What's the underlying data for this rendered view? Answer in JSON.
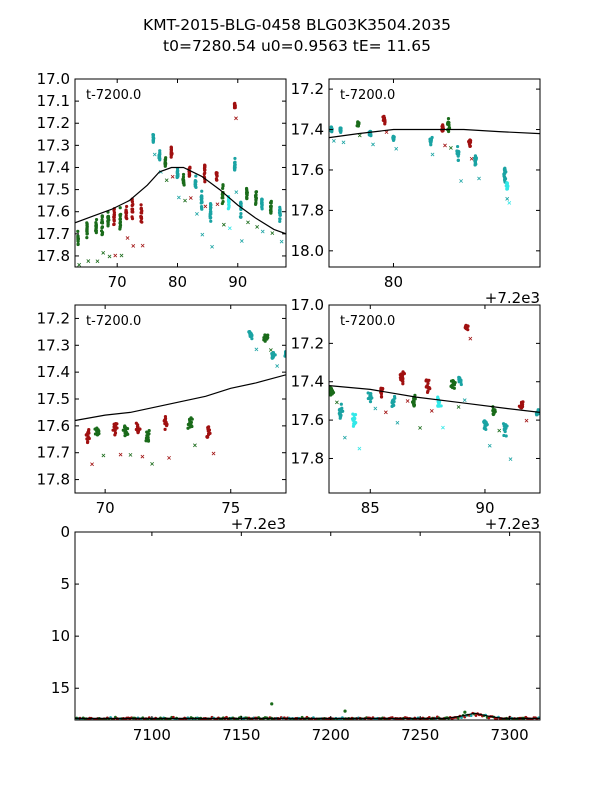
{
  "figure": {
    "title_line1": "KMT-2015-BLG-0458 BLG03K3504.2035",
    "title_line2": "t0=7280.54 u0=0.9563 tE=  11.65"
  },
  "colors": {
    "red": "#a01010",
    "green": "#1a6b1a",
    "teal": "#1aa3a3",
    "cyan": "#33e8e8",
    "model": "#000000"
  },
  "chart_data": [
    {
      "type": "scatter",
      "panel": "top-left",
      "inner_label": "t-7200.0",
      "xlim": [
        63,
        98
      ],
      "ylim": [
        17.85,
        17.0
      ],
      "inverted_y": true,
      "x_ticks": [
        "70",
        "80",
        "90"
      ],
      "x_tick_values": [
        70,
        80,
        90
      ],
      "y_ticks": [
        "17.0",
        "17.1",
        "17.2",
        "17.3",
        "17.4",
        "17.5",
        "17.6",
        "17.7",
        "17.8"
      ],
      "y_tick_values": [
        17.0,
        17.1,
        17.2,
        17.3,
        17.4,
        17.5,
        17.6,
        17.7,
        17.8
      ],
      "x_offset_label": "",
      "model": [
        [
          63,
          17.65
        ],
        [
          66,
          17.62
        ],
        [
          69,
          17.59
        ],
        [
          72,
          17.55
        ],
        [
          75,
          17.48
        ],
        [
          77,
          17.42
        ],
        [
          79,
          17.4
        ],
        [
          81,
          17.4
        ],
        [
          84,
          17.44
        ],
        [
          87,
          17.5
        ],
        [
          90,
          17.57
        ],
        [
          93,
          17.63
        ],
        [
          96,
          17.68
        ],
        [
          98,
          17.7
        ]
      ],
      "clusters": [
        {
          "x": 63.5,
          "y": 17.72,
          "s": 0.05,
          "c": "green"
        },
        {
          "x": 65,
          "y": 17.68,
          "s": 0.05,
          "c": "green"
        },
        {
          "x": 66.5,
          "y": 17.67,
          "s": 0.05,
          "c": "green"
        },
        {
          "x": 67.5,
          "y": 17.66,
          "s": 0.06,
          "c": "green"
        },
        {
          "x": 68.5,
          "y": 17.64,
          "s": 0.06,
          "c": "green"
        },
        {
          "x": 69.5,
          "y": 17.62,
          "s": 0.06,
          "c": "red"
        },
        {
          "x": 70.5,
          "y": 17.63,
          "s": 0.06,
          "c": "green"
        },
        {
          "x": 71.5,
          "y": 17.61,
          "s": 0.05,
          "c": "red"
        },
        {
          "x": 72.5,
          "y": 17.6,
          "s": 0.06,
          "c": "red"
        },
        {
          "x": 74,
          "y": 17.61,
          "s": 0.06,
          "c": "red"
        },
        {
          "x": 76,
          "y": 17.27,
          "s": 0.03,
          "c": "teal"
        },
        {
          "x": 77,
          "y": 17.35,
          "s": 0.03,
          "c": "teal"
        },
        {
          "x": 78,
          "y": 17.38,
          "s": 0.03,
          "c": "green"
        },
        {
          "x": 79,
          "y": 17.33,
          "s": 0.04,
          "c": "red"
        },
        {
          "x": 80,
          "y": 17.43,
          "s": 0.04,
          "c": "teal"
        },
        {
          "x": 81,
          "y": 17.46,
          "s": 0.04,
          "c": "green"
        },
        {
          "x": 82,
          "y": 17.42,
          "s": 0.04,
          "c": "red"
        },
        {
          "x": 83,
          "y": 17.47,
          "s": 0.05,
          "c": "teal"
        },
        {
          "x": 84,
          "y": 17.55,
          "s": 0.06,
          "c": "teal"
        },
        {
          "x": 84.5,
          "y": 17.42,
          "s": 0.06,
          "c": "red"
        },
        {
          "x": 85.5,
          "y": 17.6,
          "s": 0.06,
          "c": "teal"
        },
        {
          "x": 86.5,
          "y": 17.43,
          "s": 0.05,
          "c": "red"
        },
        {
          "x": 87.5,
          "y": 17.52,
          "s": 0.05,
          "c": "green"
        },
        {
          "x": 88.5,
          "y": 17.55,
          "s": 0.06,
          "c": "cyan"
        },
        {
          "x": 89.5,
          "y": 17.39,
          "s": 0.05,
          "c": "teal"
        },
        {
          "x": 89.5,
          "y": 17.12,
          "s": 0.02,
          "c": "red"
        },
        {
          "x": 90.5,
          "y": 17.58,
          "s": 0.06,
          "c": "teal"
        },
        {
          "x": 91.5,
          "y": 17.52,
          "s": 0.05,
          "c": "green"
        },
        {
          "x": 93,
          "y": 17.53,
          "s": 0.05,
          "c": "green"
        },
        {
          "x": 94,
          "y": 17.57,
          "s": 0.05,
          "c": "teal"
        },
        {
          "x": 95.5,
          "y": 17.58,
          "s": 0.05,
          "c": "green"
        },
        {
          "x": 97,
          "y": 17.61,
          "s": 0.05,
          "c": "teal"
        }
      ]
    },
    {
      "type": "scatter",
      "panel": "top-right",
      "inner_label": "t-7200.0",
      "xlim": [
        74.5,
        92.5
      ],
      "ylim": [
        18.08,
        17.15
      ],
      "inverted_y": true,
      "x_ticks": [
        "80"
      ],
      "x_tick_values": [
        80
      ],
      "y_ticks": [
        "17.2",
        "17.4",
        "17.6",
        "17.8",
        "18.0"
      ],
      "y_tick_values": [
        17.2,
        17.4,
        17.6,
        17.8,
        18.0
      ],
      "x_offset_label": "+7.2e3",
      "model": [
        [
          74.5,
          17.44
        ],
        [
          77,
          17.42
        ],
        [
          80,
          17.4
        ],
        [
          83,
          17.4
        ],
        [
          86,
          17.4
        ],
        [
          89,
          17.41
        ],
        [
          92.5,
          17.42
        ]
      ],
      "clusters": [
        {
          "x": 74.7,
          "y": 17.4,
          "s": 0.02,
          "c": "teal"
        },
        {
          "x": 75.5,
          "y": 17.4,
          "s": 0.02,
          "c": "teal"
        },
        {
          "x": 77,
          "y": 17.37,
          "s": 0.02,
          "c": "green"
        },
        {
          "x": 78,
          "y": 17.42,
          "s": 0.02,
          "c": "teal"
        },
        {
          "x": 79.2,
          "y": 17.35,
          "s": 0.03,
          "c": "red"
        },
        {
          "x": 80,
          "y": 17.44,
          "s": 0.02,
          "c": "teal"
        },
        {
          "x": 83.2,
          "y": 17.45,
          "s": 0.03,
          "c": "teal"
        },
        {
          "x": 84.2,
          "y": 17.4,
          "s": 0.03,
          "c": "red"
        },
        {
          "x": 84.7,
          "y": 17.38,
          "s": 0.04,
          "c": "green"
        },
        {
          "x": 85.5,
          "y": 17.52,
          "s": 0.05,
          "c": "teal"
        },
        {
          "x": 86.5,
          "y": 17.47,
          "s": 0.03,
          "c": "red"
        },
        {
          "x": 87,
          "y": 17.55,
          "s": 0.04,
          "c": "teal"
        },
        {
          "x": 89.5,
          "y": 17.63,
          "s": 0.06,
          "c": "teal"
        },
        {
          "x": 89.7,
          "y": 17.68,
          "s": 0.05,
          "c": "cyan"
        }
      ]
    },
    {
      "type": "scatter",
      "panel": "middle-left",
      "inner_label": "t-7200.0",
      "xlim": [
        68.8,
        77.2
      ],
      "ylim": [
        17.85,
        17.15
      ],
      "inverted_y": true,
      "x_ticks": [
        "70",
        "75"
      ],
      "x_tick_values": [
        70,
        75
      ],
      "y_ticks": [
        "17.2",
        "17.3",
        "17.4",
        "17.5",
        "17.6",
        "17.7",
        "17.8"
      ],
      "y_tick_values": [
        17.2,
        17.3,
        17.4,
        17.5,
        17.6,
        17.7,
        17.8
      ],
      "x_offset_label": "+7.2e3",
      "model": [
        [
          68.8,
          17.58
        ],
        [
          70,
          17.56
        ],
        [
          71,
          17.55
        ],
        [
          72,
          17.53
        ],
        [
          73,
          17.51
        ],
        [
          74,
          17.49
        ],
        [
          75,
          17.46
        ],
        [
          76,
          17.44
        ],
        [
          77.2,
          17.41
        ]
      ],
      "clusters": [
        {
          "x": 69.3,
          "y": 17.64,
          "s": 0.04,
          "c": "red"
        },
        {
          "x": 69.7,
          "y": 17.62,
          "s": 0.03,
          "c": "green"
        },
        {
          "x": 70.4,
          "y": 17.61,
          "s": 0.04,
          "c": "red"
        },
        {
          "x": 70.8,
          "y": 17.62,
          "s": 0.03,
          "c": "green"
        },
        {
          "x": 71.3,
          "y": 17.61,
          "s": 0.04,
          "c": "red"
        },
        {
          "x": 71.7,
          "y": 17.64,
          "s": 0.04,
          "c": "green"
        },
        {
          "x": 72.4,
          "y": 17.59,
          "s": 0.04,
          "c": "red"
        },
        {
          "x": 73.4,
          "y": 17.59,
          "s": 0.03,
          "c": "green"
        },
        {
          "x": 74.1,
          "y": 17.62,
          "s": 0.04,
          "c": "red"
        },
        {
          "x": 75.8,
          "y": 17.26,
          "s": 0.02,
          "c": "teal"
        },
        {
          "x": 76.4,
          "y": 17.27,
          "s": 0.02,
          "c": "green"
        },
        {
          "x": 76.7,
          "y": 17.34,
          "s": 0.02,
          "c": "teal"
        },
        {
          "x": 77.2,
          "y": 17.33,
          "s": 0.02,
          "c": "teal"
        }
      ]
    },
    {
      "type": "scatter",
      "panel": "middle-right",
      "inner_label": "t-7200.0",
      "xlim": [
        83.2,
        92.4
      ],
      "ylim": [
        17.98,
        17.0
      ],
      "inverted_y": true,
      "x_ticks": [
        "85",
        "90"
      ],
      "x_tick_values": [
        85,
        90
      ],
      "y_ticks": [
        "17.0",
        "17.2",
        "17.4",
        "17.6",
        "17.8"
      ],
      "y_tick_values": [
        17.0,
        17.2,
        17.4,
        17.6,
        17.8
      ],
      "x_offset_label": "+7.2e3",
      "model": [
        [
          83.2,
          17.42
        ],
        [
          85,
          17.44
        ],
        [
          87,
          17.48
        ],
        [
          89,
          17.51
        ],
        [
          91,
          17.54
        ],
        [
          92.4,
          17.56
        ]
      ],
      "clusters": [
        {
          "x": 83.3,
          "y": 17.45,
          "s": 0.03,
          "c": "green"
        },
        {
          "x": 83.7,
          "y": 17.55,
          "s": 0.05,
          "c": "teal"
        },
        {
          "x": 84.3,
          "y": 17.6,
          "s": 0.06,
          "c": "cyan"
        },
        {
          "x": 85.0,
          "y": 17.48,
          "s": 0.03,
          "c": "teal"
        },
        {
          "x": 85.5,
          "y": 17.45,
          "s": 0.04,
          "c": "red"
        },
        {
          "x": 86,
          "y": 17.5,
          "s": 0.04,
          "c": "teal"
        },
        {
          "x": 86.4,
          "y": 17.38,
          "s": 0.05,
          "c": "red"
        },
        {
          "x": 86.9,
          "y": 17.5,
          "s": 0.05,
          "c": "green"
        },
        {
          "x": 87.5,
          "y": 17.42,
          "s": 0.05,
          "c": "red"
        },
        {
          "x": 88,
          "y": 17.52,
          "s": 0.05,
          "c": "cyan"
        },
        {
          "x": 88.6,
          "y": 17.42,
          "s": 0.04,
          "c": "green"
        },
        {
          "x": 88.9,
          "y": 17.4,
          "s": 0.04,
          "c": "teal"
        },
        {
          "x": 89.2,
          "y": 17.12,
          "s": 0.02,
          "c": "red"
        },
        {
          "x": 90,
          "y": 17.62,
          "s": 0.05,
          "c": "teal"
        },
        {
          "x": 90.4,
          "y": 17.55,
          "s": 0.04,
          "c": "green"
        },
        {
          "x": 90.9,
          "y": 17.65,
          "s": 0.06,
          "c": "teal"
        },
        {
          "x": 91.6,
          "y": 17.52,
          "s": 0.03,
          "c": "red"
        },
        {
          "x": 92.3,
          "y": 17.56,
          "s": 0.03,
          "c": "teal"
        }
      ]
    },
    {
      "type": "scatter",
      "panel": "bottom",
      "inner_label": "",
      "xlim": [
        7057,
        7317
      ],
      "ylim": [
        18.05,
        0
      ],
      "inverted_y": true,
      "x_ticks": [
        "7100",
        "7150",
        "7200",
        "7250",
        "7300"
      ],
      "x_tick_values": [
        7100,
        7150,
        7200,
        7250,
        7300
      ],
      "y_ticks": [
        "0",
        "5",
        "10",
        "15"
      ],
      "y_tick_values": [
        0,
        5,
        10,
        15
      ],
      "x_offset_label": "",
      "band_y": 17.9,
      "model": [
        [
          7057,
          17.9
        ],
        [
          7265,
          17.9
        ],
        [
          7272,
          17.7
        ],
        [
          7280.5,
          17.4
        ],
        [
          7289,
          17.7
        ],
        [
          7296,
          17.9
        ],
        [
          7317,
          17.9
        ]
      ],
      "spikes": [
        [
          7167,
          16.5
        ],
        [
          7208,
          17.2
        ],
        [
          7275,
          17.3
        ]
      ]
    }
  ]
}
